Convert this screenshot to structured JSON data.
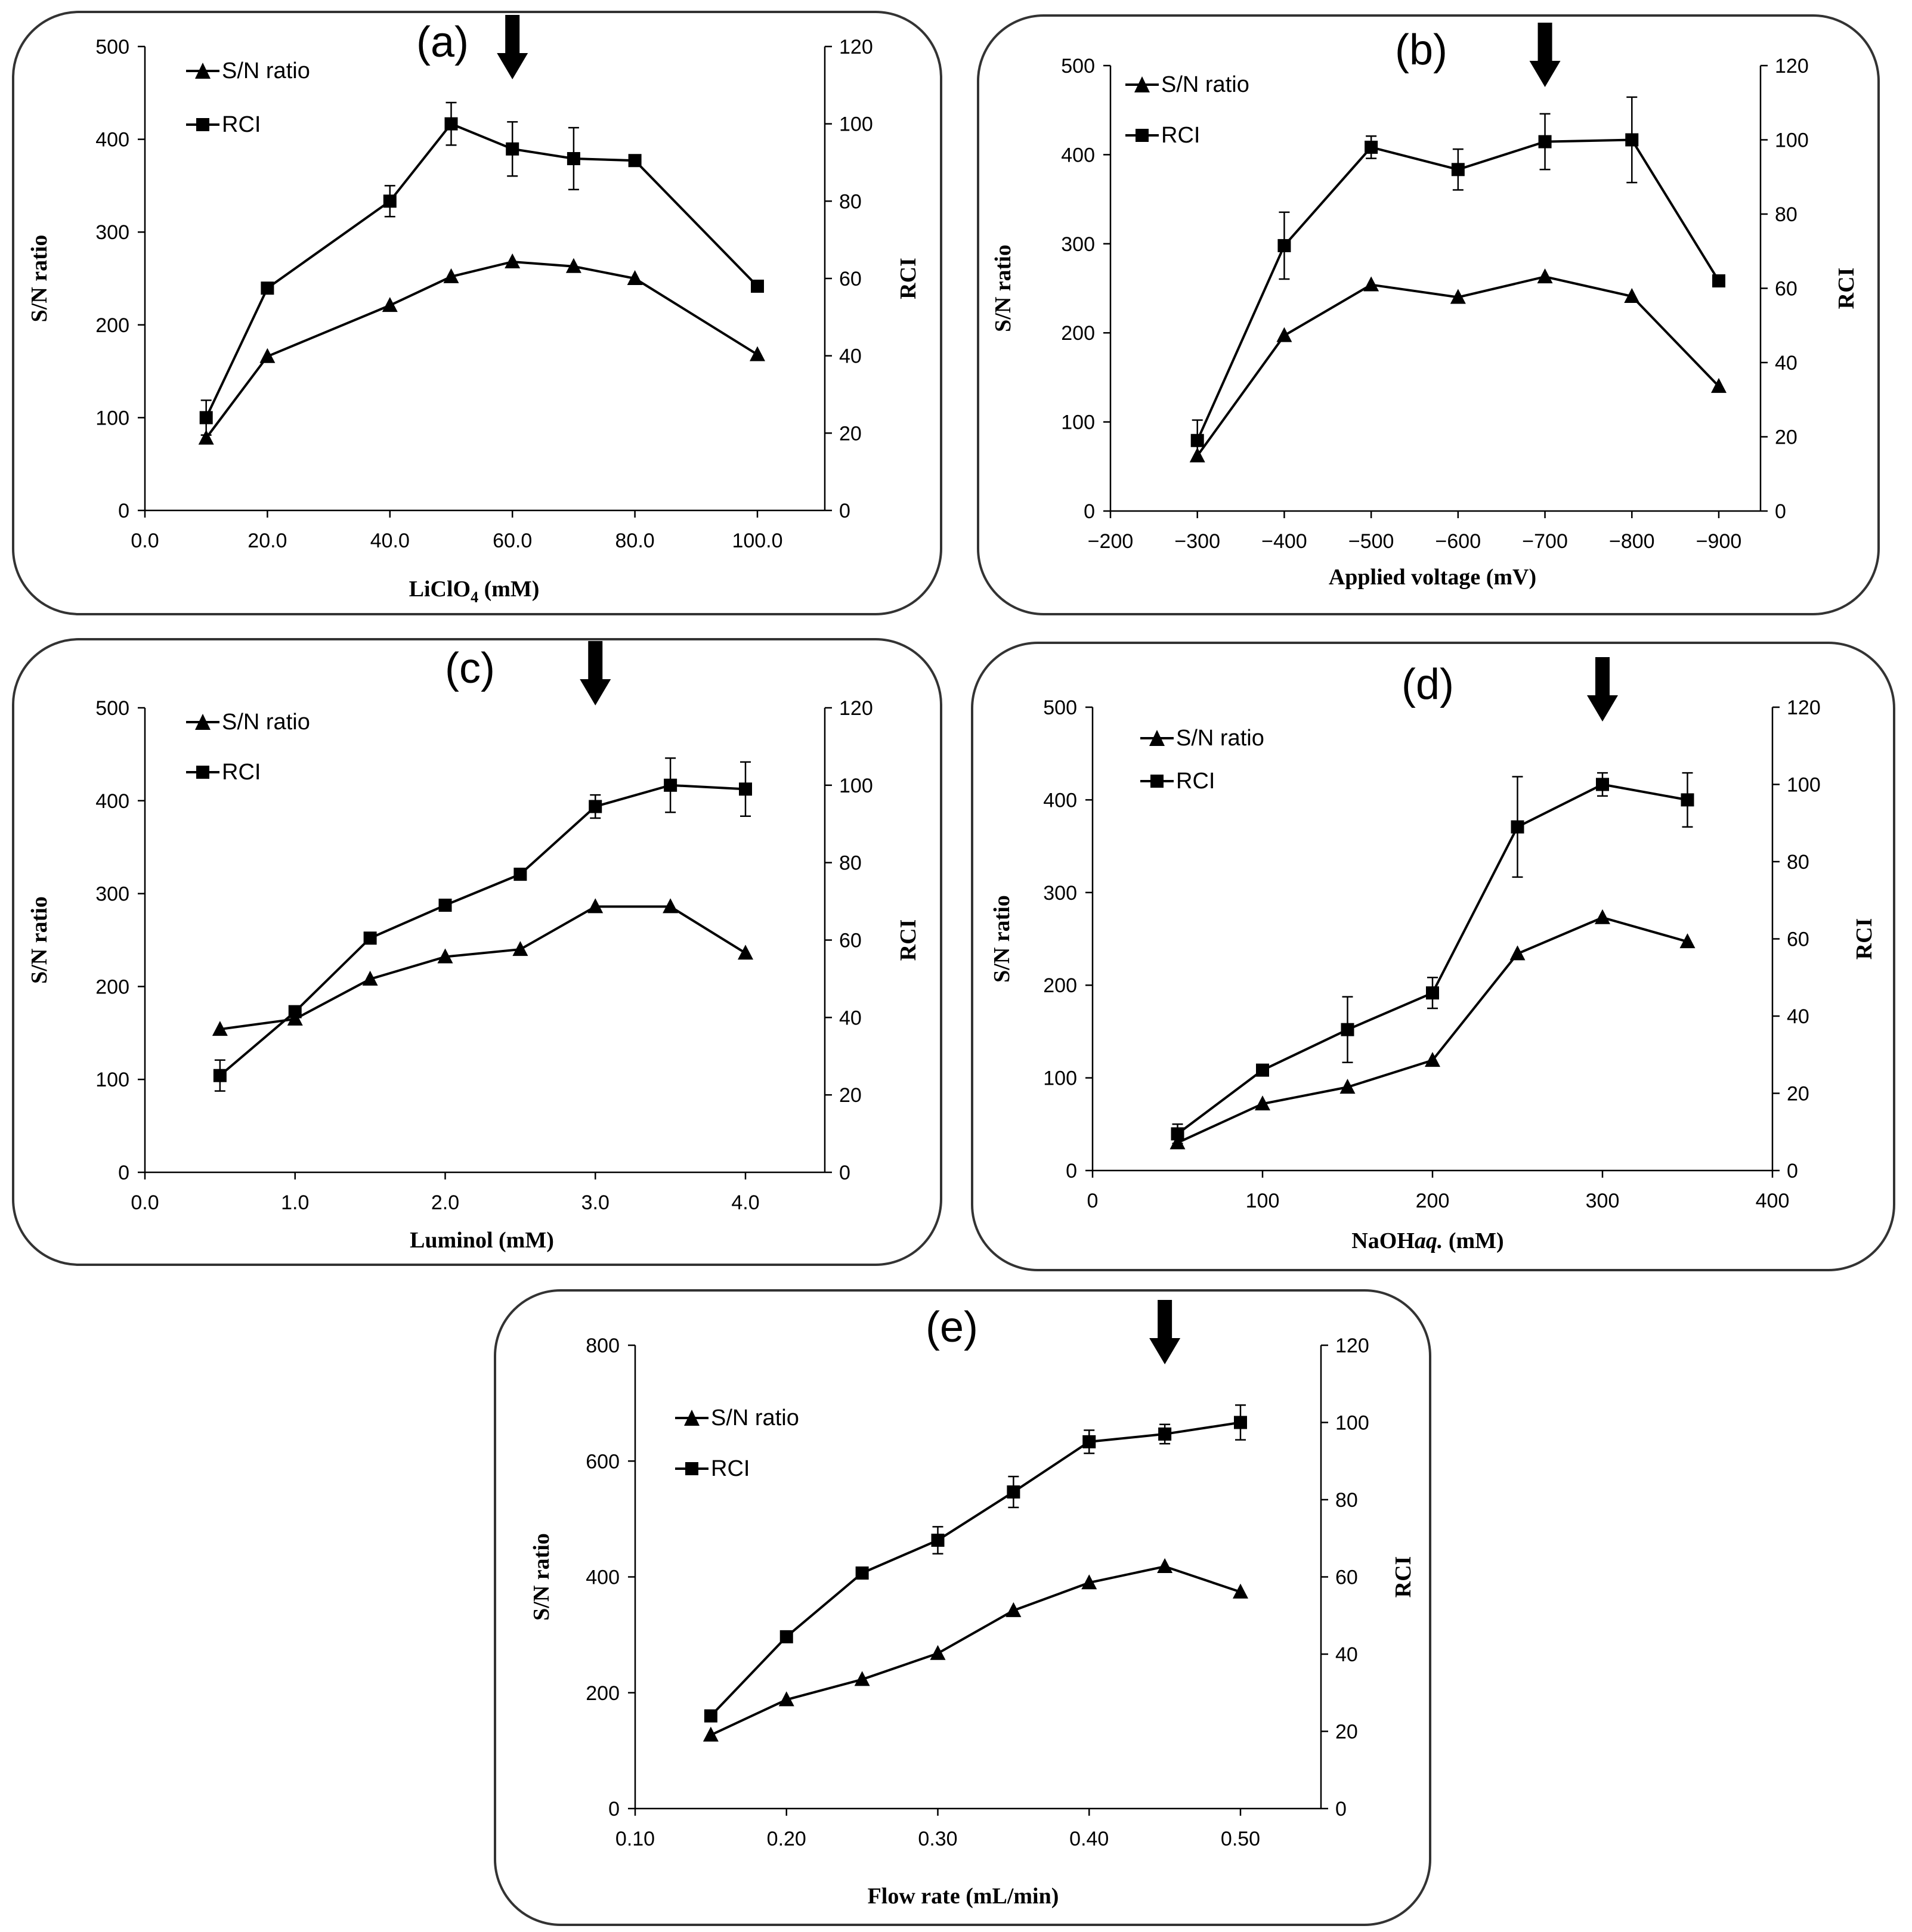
{
  "figure": {
    "panels": [
      {
        "id": "a",
        "label": "(a)",
        "xlabel": "LiClO4 (mM)",
        "xlabel_main": "LiClO",
        "xlabel_sub": "4",
        "xlabel_tail": " (mM)",
        "ylabel_left": "S/N ratio",
        "ylabel_right": "RCI",
        "legend": [
          "S/N ratio",
          "RCI"
        ],
        "x_ticks": [
          "0.0",
          "20.0",
          "40.0",
          "60.0",
          "80.0",
          "100.0"
        ],
        "y_left_ticks": [
          "0",
          "100",
          "200",
          "300",
          "400",
          "500"
        ],
        "y_right_ticks": [
          "0",
          "20",
          "40",
          "60",
          "80",
          "100",
          "120"
        ],
        "arrow_x": 60
      },
      {
        "id": "b",
        "label": "(b)",
        "xlabel": "Applied voltage (mV)",
        "ylabel_left": "S/N ratio",
        "ylabel_right": "RCI",
        "legend": [
          "S/N ratio",
          "RCI"
        ],
        "x_ticks": [
          "−200",
          "−300",
          "−400",
          "−500",
          "−600",
          "−700",
          "−800",
          "−900"
        ],
        "y_left_ticks": [
          "0",
          "100",
          "200",
          "300",
          "400",
          "500"
        ],
        "y_right_ticks": [
          "0",
          "20",
          "40",
          "60",
          "80",
          "100",
          "120"
        ],
        "arrow_x": -700
      },
      {
        "id": "c",
        "label": "(c)",
        "xlabel": "Luminol (mM)",
        "ylabel_left": "S/N ratio",
        "ylabel_right": "RCI",
        "legend": [
          "S/N ratio",
          "RCI"
        ],
        "x_ticks": [
          "0.0",
          "1.0",
          "2.0",
          "3.0",
          "4.0"
        ],
        "y_left_ticks": [
          "0",
          "100",
          "200",
          "300",
          "400",
          "500"
        ],
        "y_right_ticks": [
          "0",
          "20",
          "40",
          "60",
          "80",
          "100",
          "120"
        ],
        "arrow_x": 3.0
      },
      {
        "id": "d",
        "label": "(d)",
        "xlabel": "NaOHaq. (mM)",
        "xlabel_main": "NaOH",
        "xlabel_italic": "aq.",
        "xlabel_tail": " (mM)",
        "ylabel_left": "S/N ratio",
        "ylabel_right": "RCI",
        "legend": [
          "S/N ratio",
          "RCI"
        ],
        "x_ticks": [
          "0",
          "100",
          "200",
          "300",
          "400"
        ],
        "y_left_ticks": [
          "0",
          "100",
          "200",
          "300",
          "400",
          "500"
        ],
        "y_right_ticks": [
          "0",
          "20",
          "40",
          "60",
          "80",
          "100",
          "120"
        ],
        "arrow_x": 300
      },
      {
        "id": "e",
        "label": "(e)",
        "xlabel": "Flow rate (mL/min)",
        "ylabel_left": "S/N ratio",
        "ylabel_right": "RCI",
        "legend": [
          "S/N ratio",
          "RCI"
        ],
        "x_ticks": [
          "0.10",
          "0.20",
          "0.30",
          "0.40",
          "0.50"
        ],
        "y_left_ticks": [
          "0",
          "200",
          "400",
          "600",
          "800"
        ],
        "y_right_ticks": [
          "0",
          "20",
          "40",
          "60",
          "80",
          "100",
          "120"
        ],
        "arrow_x": 0.45
      }
    ]
  },
  "chart_data": [
    {
      "type": "line",
      "panel": "(a)",
      "xlabel": "LiClO4 (mM)",
      "ylabel": "S/N ratio",
      "y2label": "RCI",
      "xlim": [
        0,
        110
      ],
      "ylim": [
        0,
        500
      ],
      "y2lim": [
        0,
        120
      ],
      "series": [
        {
          "name": "S/N ratio",
          "axis": "left",
          "marker": "triangle",
          "x": [
            10,
            20,
            40,
            50,
            60,
            70,
            80,
            100
          ],
          "y": [
            78,
            166,
            221,
            252,
            268,
            263,
            250,
            168
          ]
        },
        {
          "name": "RCI",
          "axis": "right",
          "marker": "square",
          "x": [
            10,
            20,
            40,
            50,
            60,
            70,
            80,
            100
          ],
          "y": [
            24,
            57.5,
            80,
            100,
            93.5,
            91,
            90.5,
            58
          ],
          "err": [
            4.5,
            0,
            4,
            5.5,
            7,
            8,
            0,
            0
          ]
        }
      ]
    },
    {
      "type": "line",
      "panel": "(b)",
      "xlabel": "Applied voltage (mV)",
      "ylabel": "S/N ratio",
      "y2label": "RCI",
      "xlim": [
        -200,
        -950
      ],
      "ylim": [
        0,
        500
      ],
      "y2lim": [
        0,
        120
      ],
      "series": [
        {
          "name": "S/N ratio",
          "axis": "left",
          "marker": "triangle",
          "x": [
            -300,
            -400,
            -500,
            -600,
            -700,
            -800,
            -900
          ],
          "y": [
            62,
            197,
            254,
            240,
            263,
            241,
            140
          ]
        },
        {
          "name": "RCI",
          "axis": "right",
          "marker": "square",
          "x": [
            -300,
            -400,
            -500,
            -600,
            -700,
            -800,
            -900
          ],
          "y": [
            19,
            71.5,
            98,
            92,
            99.5,
            100,
            62
          ],
          "err": [
            5.5,
            9,
            3,
            5.5,
            7.5,
            11.5,
            0
          ]
        }
      ]
    },
    {
      "type": "line",
      "panel": "(c)",
      "xlabel": "Luminol (mM)",
      "ylabel": "S/N ratio",
      "y2label": "RCI",
      "xlim": [
        0,
        4.5
      ],
      "ylim": [
        0,
        500
      ],
      "y2lim": [
        0,
        120
      ],
      "series": [
        {
          "name": "S/N ratio",
          "axis": "left",
          "marker": "triangle",
          "x": [
            0.5,
            1.0,
            1.5,
            2.0,
            2.5,
            3.0,
            3.5,
            4.0
          ],
          "y": [
            154,
            165,
            208,
            232,
            240,
            286,
            286,
            236
          ]
        },
        {
          "name": "RCI",
          "axis": "right",
          "marker": "square",
          "x": [
            0.5,
            1.0,
            1.5,
            2.0,
            2.5,
            3.0,
            3.5,
            4.0
          ],
          "y": [
            25,
            41.5,
            60.5,
            69,
            77,
            94.5,
            100,
            99
          ],
          "err": [
            4,
            0,
            0,
            0,
            0,
            3,
            7,
            7
          ]
        }
      ]
    },
    {
      "type": "line",
      "panel": "(d)",
      "xlabel": "NaOHaq. (mM)",
      "ylabel": "S/N ratio",
      "y2label": "RCI",
      "xlim": [
        0,
        400
      ],
      "ylim": [
        0,
        500
      ],
      "y2lim": [
        0,
        120
      ],
      "series": [
        {
          "name": "S/N ratio",
          "axis": "left",
          "marker": "triangle",
          "x": [
            50,
            100,
            150,
            200,
            250,
            300,
            350
          ],
          "y": [
            30,
            72,
            90,
            119,
            234,
            273,
            247
          ]
        },
        {
          "name": "RCI",
          "axis": "right",
          "marker": "square",
          "x": [
            50,
            100,
            150,
            200,
            250,
            300,
            350
          ],
          "y": [
            9.5,
            26,
            36.5,
            46,
            89,
            100,
            96
          ],
          "err": [
            2.5,
            0,
            8.5,
            4,
            13,
            3,
            7
          ]
        }
      ]
    },
    {
      "type": "line",
      "panel": "(e)",
      "xlabel": "Flow rate (mL/min)",
      "ylabel": "S/N ratio",
      "y2label": "RCI",
      "xlim": [
        0.1,
        0.55
      ],
      "ylim": [
        0,
        800
      ],
      "y2lim": [
        0,
        120
      ],
      "series": [
        {
          "name": "S/N ratio",
          "axis": "left",
          "marker": "triangle",
          "x": [
            0.15,
            0.2,
            0.25,
            0.3,
            0.35,
            0.4,
            0.45,
            0.5
          ],
          "y": [
            127,
            188,
            223,
            268,
            342,
            390,
            418,
            374
          ]
        },
        {
          "name": "RCI",
          "axis": "right",
          "marker": "square",
          "x": [
            0.15,
            0.2,
            0.25,
            0.3,
            0.35,
            0.4,
            0.45,
            0.5
          ],
          "y": [
            24,
            44.5,
            61,
            69.5,
            82,
            95,
            97,
            100
          ],
          "err": [
            0,
            0,
            0,
            3.5,
            4,
            3,
            2.5,
            4.5
          ]
        }
      ]
    }
  ]
}
